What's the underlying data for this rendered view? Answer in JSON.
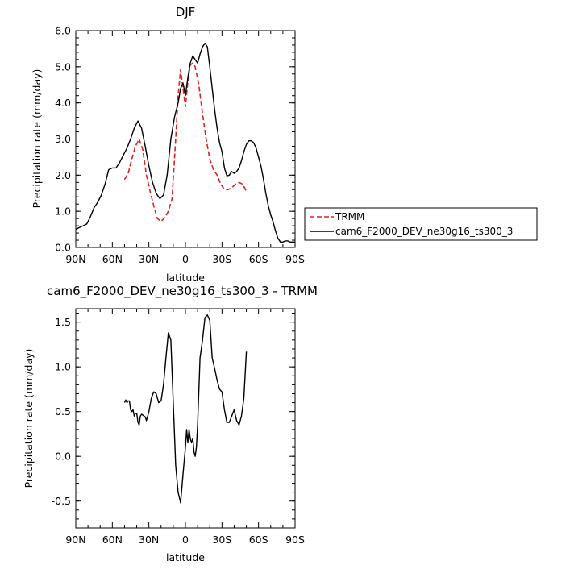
{
  "chart_data": [
    {
      "type": "line",
      "title": "DJF",
      "xlabel": "latitude",
      "ylabel": "Precipitation rate (mm/day)",
      "xlim": [
        -90,
        90
      ],
      "ylim": [
        0,
        6
      ],
      "x_ticks": [
        {
          "v": -90,
          "label": "90N"
        },
        {
          "v": -60,
          "label": "60N"
        },
        {
          "v": -30,
          "label": "30N"
        },
        {
          "v": 0,
          "label": "0"
        },
        {
          "v": 30,
          "label": "30S"
        },
        {
          "v": 60,
          "label": "60S"
        },
        {
          "v": 90,
          "label": "90S"
        }
      ],
      "y_ticks": [
        {
          "v": 0,
          "label": "0.0"
        },
        {
          "v": 1,
          "label": "1.0"
        },
        {
          "v": 2,
          "label": "2.0"
        },
        {
          "v": 3,
          "label": "3.0"
        },
        {
          "v": 4,
          "label": "4.0"
        },
        {
          "v": 5,
          "label": "5.0"
        },
        {
          "v": 6,
          "label": "6.0"
        }
      ],
      "legend_position": "right",
      "series": [
        {
          "name": "TRMM",
          "color": "#dd2222",
          "dash": "dashed",
          "x": [
            -50,
            -47,
            -44,
            -41,
            -38,
            -35,
            -32,
            -29,
            -26,
            -23,
            -20,
            -17,
            -14,
            -11,
            -8,
            -6,
            -4,
            -2,
            0,
            2,
            4,
            6,
            8,
            11,
            14,
            17,
            20,
            23,
            26,
            29,
            32,
            35,
            38,
            41,
            44,
            47,
            50
          ],
          "y": [
            1.88,
            2.05,
            2.45,
            2.8,
            3.0,
            2.7,
            2.0,
            1.55,
            1.15,
            0.8,
            0.72,
            0.82,
            1.0,
            1.35,
            3.0,
            4.2,
            4.92,
            4.4,
            3.9,
            4.6,
            5.05,
            5.1,
            5.0,
            4.5,
            3.7,
            3.0,
            2.45,
            2.15,
            2.0,
            1.75,
            1.6,
            1.6,
            1.65,
            1.75,
            1.8,
            1.75,
            1.55
          ]
        },
        {
          "name": "cam6_F2000_DEV_ne30g16_ts300_3",
          "color": "#000000",
          "dash": "solid",
          "x": [
            -90,
            -87,
            -84,
            -81,
            -78,
            -75,
            -72,
            -69,
            -66,
            -63,
            -60,
            -57,
            -54,
            -51,
            -48,
            -45,
            -42,
            -39,
            -36,
            -33,
            -30,
            -27,
            -24,
            -21,
            -18,
            -15,
            -12,
            -9,
            -6,
            -4,
            -2,
            0,
            2,
            4,
            6,
            8,
            10,
            12,
            14,
            16,
            18,
            20,
            22,
            24,
            26,
            28,
            30,
            32,
            34,
            36,
            38,
            40,
            42,
            44,
            46,
            48,
            50,
            52,
            54,
            56,
            58,
            60,
            62,
            64,
            66,
            68,
            70,
            72,
            74,
            76,
            78,
            80,
            82,
            84,
            86,
            88,
            90
          ],
          "y": [
            0.5,
            0.55,
            0.6,
            0.65,
            0.85,
            1.1,
            1.25,
            1.45,
            1.75,
            2.15,
            2.2,
            2.2,
            2.35,
            2.55,
            2.75,
            3.0,
            3.3,
            3.5,
            3.3,
            2.8,
            2.25,
            1.8,
            1.5,
            1.35,
            1.45,
            2.0,
            3.0,
            3.6,
            4.0,
            4.4,
            4.55,
            4.2,
            4.7,
            5.1,
            5.3,
            5.2,
            5.1,
            5.35,
            5.55,
            5.65,
            5.55,
            5.0,
            4.4,
            3.8,
            3.3,
            2.9,
            2.65,
            2.2,
            1.98,
            2.0,
            2.1,
            2.05,
            2.1,
            2.2,
            2.4,
            2.65,
            2.85,
            2.95,
            2.95,
            2.9,
            2.75,
            2.5,
            2.25,
            1.9,
            1.5,
            1.15,
            0.9,
            0.7,
            0.45,
            0.25,
            0.15,
            0.15,
            0.18,
            0.18,
            0.15,
            0.15,
            0.15
          ]
        }
      ]
    },
    {
      "type": "line",
      "title": "cam6_F2000_DEV_ne30g16_ts300_3 - TRMM",
      "xlabel": "latitude",
      "ylabel": "Precipitation rate (mm/day)",
      "xlim": [
        -90,
        90
      ],
      "ylim": [
        -0.8,
        1.65
      ],
      "x_ticks": [
        {
          "v": -90,
          "label": "90N"
        },
        {
          "v": -60,
          "label": "60N"
        },
        {
          "v": -30,
          "label": "30N"
        },
        {
          "v": 0,
          "label": "0"
        },
        {
          "v": 30,
          "label": "30S"
        },
        {
          "v": 60,
          "label": "60S"
        },
        {
          "v": 90,
          "label": "90S"
        }
      ],
      "y_ticks": [
        {
          "v": -0.5,
          "label": "-0.5"
        },
        {
          "v": 0,
          "label": "0.0"
        },
        {
          "v": 0.5,
          "label": "0.5"
        },
        {
          "v": 1.0,
          "label": "1.0"
        },
        {
          "v": 1.5,
          "label": "1.5"
        }
      ],
      "series": [
        {
          "color": "#000000",
          "dash": "solid",
          "x": [
            -50,
            -49,
            -48,
            -47,
            -46,
            -45,
            -44,
            -43,
            -42,
            -41,
            -40,
            -39,
            -38,
            -37,
            -36,
            -35,
            -34,
            -33,
            -32,
            -30,
            -28,
            -26,
            -24,
            -22,
            -20,
            -18,
            -16,
            -14,
            -12,
            -10,
            -8,
            -6,
            -4,
            -2,
            0,
            1,
            2,
            3,
            4,
            5,
            6,
            7,
            8,
            9,
            10,
            12,
            14,
            16,
            18,
            20,
            22,
            24,
            26,
            28,
            30,
            32,
            34,
            36,
            38,
            40,
            42,
            44,
            46,
            48,
            50
          ],
          "y": [
            0.6,
            0.63,
            0.6,
            0.62,
            0.62,
            0.52,
            0.5,
            0.52,
            0.45,
            0.48,
            0.48,
            0.38,
            0.35,
            0.45,
            0.47,
            0.46,
            0.45,
            0.44,
            0.4,
            0.5,
            0.65,
            0.72,
            0.7,
            0.6,
            0.62,
            0.8,
            1.1,
            1.38,
            1.3,
            0.6,
            -0.1,
            -0.4,
            -0.52,
            -0.2,
            0.1,
            0.3,
            0.15,
            0.3,
            0.2,
            0.15,
            0.2,
            0.05,
            0.0,
            0.1,
            0.35,
            1.1,
            1.3,
            1.55,
            1.58,
            1.52,
            1.1,
            0.98,
            0.85,
            0.75,
            0.72,
            0.52,
            0.38,
            0.38,
            0.45,
            0.52,
            0.4,
            0.35,
            0.45,
            0.65,
            1.17
          ]
        }
      ]
    }
  ]
}
